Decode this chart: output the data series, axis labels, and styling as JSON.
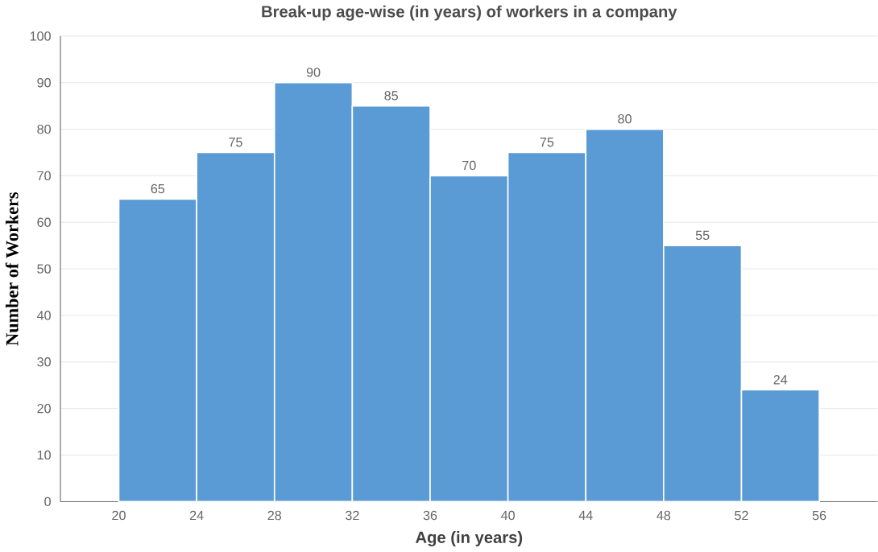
{
  "chart_data": {
    "type": "histogram",
    "title": "Break-up age-wise (in years) of workers in a company",
    "xlabel": "Age (in years)",
    "ylabel": "Number of Workers",
    "bins": [
      20,
      24,
      28,
      32,
      36,
      40,
      44,
      48,
      52,
      56
    ],
    "values": [
      65,
      75,
      90,
      85,
      70,
      75,
      80,
      55,
      24
    ],
    "color": "#5b9bd5",
    "data_labels": true,
    "grid": "y",
    "xlim": [
      17,
      59
    ],
    "xticks": [
      20,
      24,
      28,
      32,
      36,
      40,
      44,
      48,
      52,
      56
    ],
    "ylim": [
      0,
      100
    ],
    "yticks": [
      0,
      10,
      20,
      30,
      40,
      50,
      60,
      70,
      80,
      90,
      100
    ]
  }
}
